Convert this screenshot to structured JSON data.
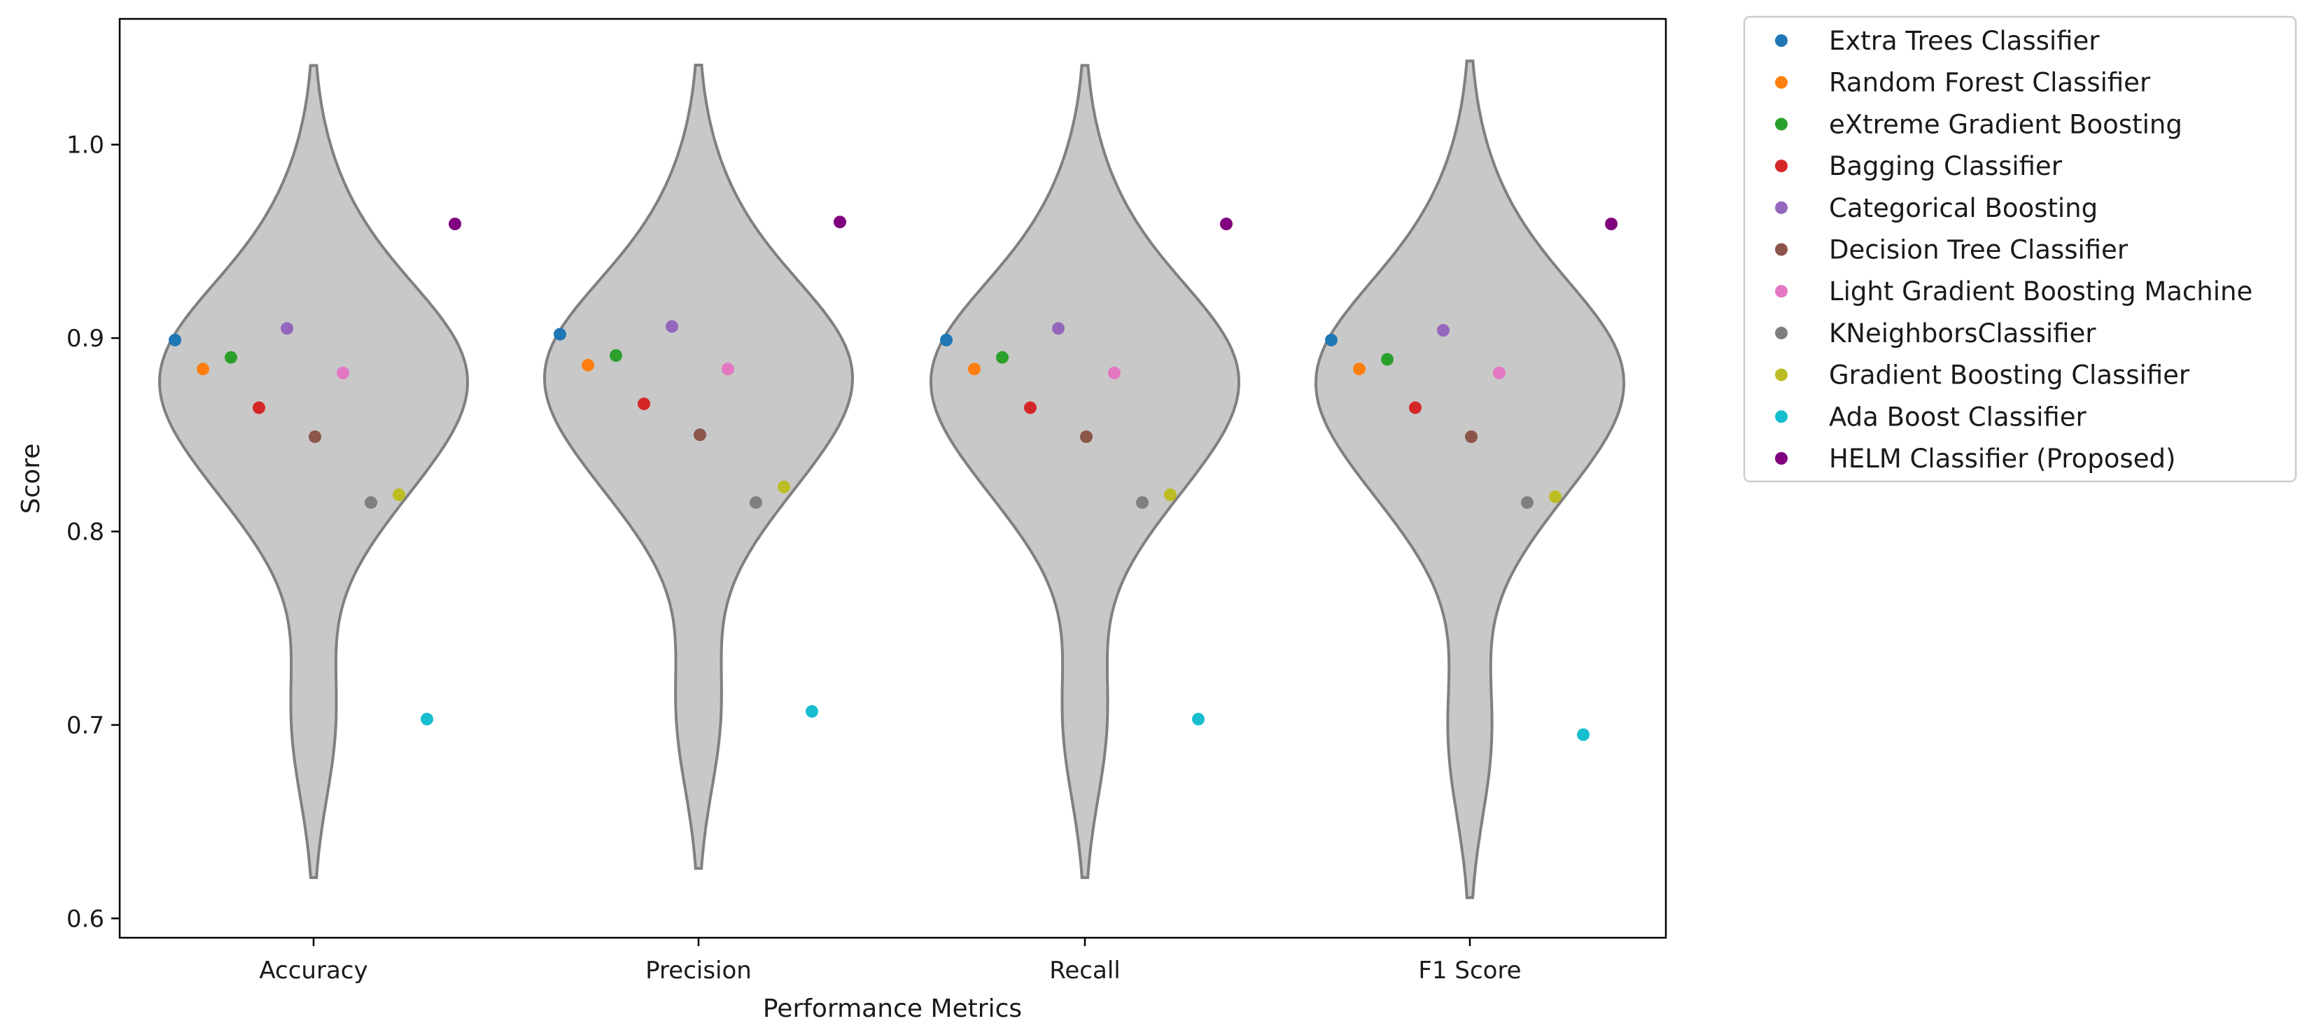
{
  "chart_data": {
    "type": "violin",
    "title": "",
    "xlabel": "Performance Metrics",
    "ylabel": "Score",
    "ylim": [
      0.59,
      1.065
    ],
    "yticks": [
      0.6,
      0.7,
      0.8,
      0.9,
      1.0
    ],
    "yticklabels": [
      "0.6",
      "0.7",
      "0.8",
      "0.9",
      "1.0"
    ],
    "categories": [
      "Accuracy",
      "Precision",
      "Recall",
      "F1 Score"
    ],
    "violin_color": "#c8c8c8",
    "violin_edge_color": "#808080",
    "legend_position": "outside-right-top",
    "grid": false,
    "series": [
      {
        "name": "Extra Trees Classifier",
        "color": "#1f77b4",
        "values": [
          0.899,
          0.902,
          0.899,
          0.899
        ]
      },
      {
        "name": "Random Forest Classifier",
        "color": "#ff7f0e",
        "values": [
          0.884,
          0.886,
          0.884,
          0.884
        ]
      },
      {
        "name": "eXtreme Gradient Boosting",
        "color": "#2ca02c",
        "values": [
          0.89,
          0.891,
          0.89,
          0.889
        ]
      },
      {
        "name": "Bagging Classifier",
        "color": "#d62728",
        "values": [
          0.864,
          0.866,
          0.864,
          0.864
        ]
      },
      {
        "name": "Categorical Boosting",
        "color": "#9467bd",
        "values": [
          0.905,
          0.906,
          0.905,
          0.904
        ]
      },
      {
        "name": "Decision Tree Classifier",
        "color": "#8c564b",
        "values": [
          0.849,
          0.85,
          0.849,
          0.849
        ]
      },
      {
        "name": "Light Gradient Boosting Machine",
        "color": "#e377c2",
        "values": [
          0.882,
          0.884,
          0.882,
          0.882
        ]
      },
      {
        "name": "KNeighborsClassifier",
        "color": "#7f7f7f",
        "values": [
          0.815,
          0.815,
          0.815,
          0.815
        ]
      },
      {
        "name": "Gradient Boosting Classifier",
        "color": "#bcbd22",
        "values": [
          0.819,
          0.823,
          0.819,
          0.818
        ]
      },
      {
        "name": "Ada Boost Classifier",
        "color": "#17becf",
        "values": [
          0.703,
          0.707,
          0.703,
          0.695
        ]
      },
      {
        "name": "HELM Classifier (Proposed)",
        "color": "#800080",
        "values": [
          0.959,
          0.96,
          0.959,
          0.959
        ]
      }
    ]
  }
}
